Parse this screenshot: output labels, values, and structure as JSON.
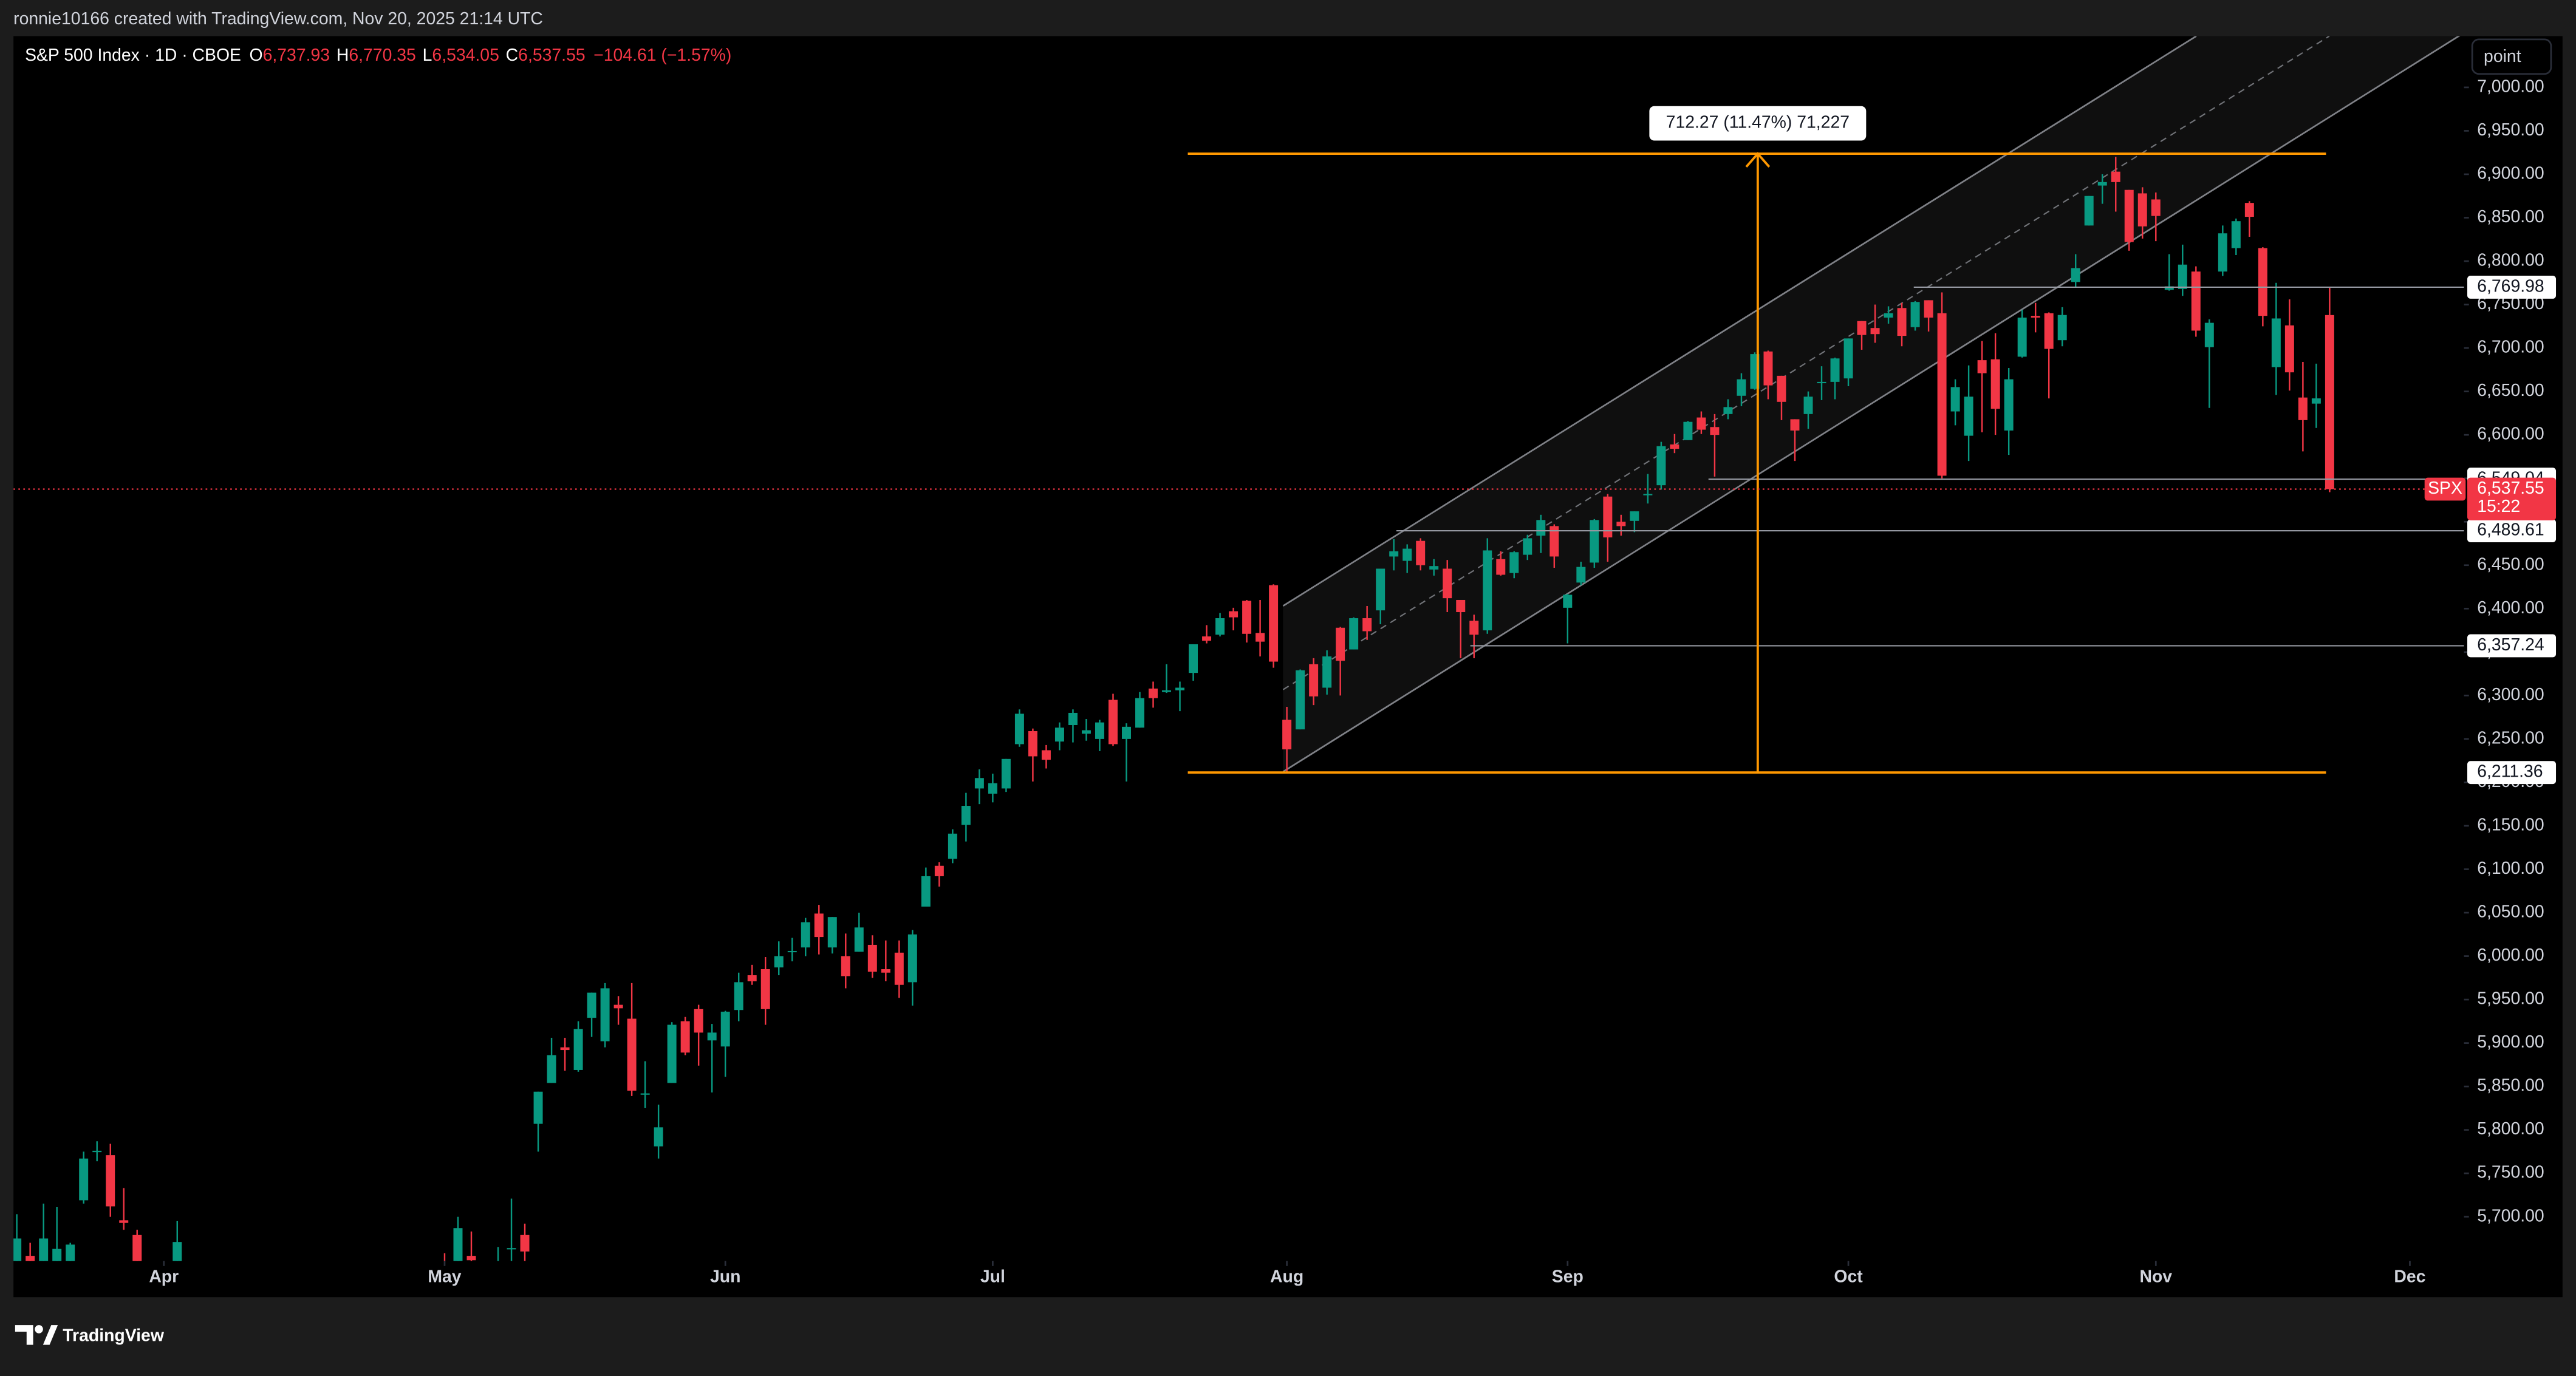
{
  "chart_data": {
    "type": "candlestick",
    "header": {
      "credit": "ronnie10166 created with TradingView.com, Nov 20, 2025 21:14 UTC"
    },
    "legend": {
      "symbol": "S&P 500 Index · 1D · CBOE",
      "ohlc": [
        {
          "key": "O",
          "label": "6,737.93"
        },
        {
          "key": "H",
          "label": "6,770.35"
        },
        {
          "key": "L",
          "label": "6,534.05"
        },
        {
          "key": "C",
          "label": "6,537.55"
        }
      ],
      "change": "−104.61 (−1.57%)"
    },
    "scale_button": "point",
    "brand": "TradingView",
    "up_color": "#089981",
    "down_color": "#f23645",
    "grid": false,
    "xlim": [
      -0.25,
      183.05
    ],
    "ylim": [
      5649,
      7059
    ],
    "xticks": [
      {
        "value": 11,
        "label": "Apr"
      },
      {
        "value": 32,
        "label": "May"
      },
      {
        "value": 53,
        "label": "Jun"
      },
      {
        "value": 73,
        "label": "Jul"
      },
      {
        "value": 95,
        "label": "Aug"
      },
      {
        "value": 116,
        "label": "Sep"
      },
      {
        "value": 137,
        "label": "Oct"
      },
      {
        "value": 160,
        "label": "Nov"
      },
      {
        "value": 179,
        "label": "Dec"
      }
    ],
    "yticks": [
      {
        "value": 5700,
        "label": "5,700.00"
      },
      {
        "value": 5750,
        "label": "5,750.00"
      },
      {
        "value": 5800,
        "label": "5,800.00"
      },
      {
        "value": 5850,
        "label": "5,850.00"
      },
      {
        "value": 5900,
        "label": "5,900.00"
      },
      {
        "value": 5950,
        "label": "5,950.00"
      },
      {
        "value": 6000,
        "label": "6,000.00"
      },
      {
        "value": 6050,
        "label": "6,050.00"
      },
      {
        "value": 6100,
        "label": "6,100.00"
      },
      {
        "value": 6150,
        "label": "6,150.00"
      },
      {
        "value": 6200,
        "label": "6,200.00"
      },
      {
        "value": 6250,
        "label": "6,250.00"
      },
      {
        "value": 6300,
        "label": "6,300.00"
      },
      {
        "value": 6350,
        "label": "6,350.00"
      },
      {
        "value": 6400,
        "label": "6,400.00"
      },
      {
        "value": 6450,
        "label": "6,450.00"
      },
      {
        "value": 6500,
        "label": "6,500.00"
      },
      {
        "value": 6550,
        "label": "6,550.00"
      },
      {
        "value": 6600,
        "label": "6,600.00"
      },
      {
        "value": 6650,
        "label": "6,650.00"
      },
      {
        "value": 6700,
        "label": "6,700.00"
      },
      {
        "value": 6750,
        "label": "6,750.00"
      },
      {
        "value": 6800,
        "label": "6,800.00"
      },
      {
        "value": 6850,
        "label": "6,850.00"
      },
      {
        "value": 6900,
        "label": "6,900.00"
      },
      {
        "value": 6950,
        "label": "6,950.00"
      },
      {
        "value": 7000,
        "label": "7,000.00"
      }
    ],
    "price_levels": [
      {
        "value": 6769.98,
        "label": "6,769.98"
      },
      {
        "value": 6549.04,
        "label": "6,549.04"
      },
      {
        "value": 6489.61,
        "label": "6,489.61"
      },
      {
        "value": 6357.24,
        "label": "6,357.24"
      },
      {
        "value": 6211.36,
        "label": "6,211.36"
      }
    ],
    "measure": {
      "label": "712.27 (11.47%) 71,227",
      "change": 712.27
    },
    "last_price": {
      "symbol": "SPX",
      "label": "6,537.55",
      "countdown": "15:22"
    },
    "ohlc": [
      [
        5635,
        5703,
        5632,
        5675
      ],
      [
        5655,
        5670,
        5597,
        5615
      ],
      [
        5632,
        5715,
        5622,
        5675
      ],
      [
        5646,
        5711,
        5633,
        5663
      ],
      [
        5630,
        5670,
        5603,
        5668
      ],
      [
        5719,
        5775,
        5715,
        5767
      ],
      [
        5775,
        5787,
        5764,
        5776
      ],
      [
        5771,
        5784,
        5700,
        5712
      ],
      [
        5696,
        5733,
        5685,
        5693
      ],
      [
        5679,
        5685,
        5572,
        5581
      ],
      null,
      null,
      [
        5580,
        5695,
        5571,
        5671
      ],
      null,
      null,
      null,
      null,
      null,
      null,
      null,
      null,
      null,
      null,
      null,
      null,
      null,
      null,
      null,
      null,
      null,
      null,
      null,
      [
        5626,
        5658,
        5597,
        5604
      ],
      [
        5645,
        5700,
        5631,
        5687
      ],
      [
        5655,
        5683,
        5637,
        5650
      ],
      null,
      [
        5617,
        5665,
        5585,
        5631
      ],
      [
        5663,
        5721,
        5640,
        5664
      ],
      [
        5679,
        5692,
        5645,
        5660
      ],
      [
        5807,
        5844,
        5775,
        5844
      ],
      [
        5854,
        5906,
        5854,
        5886
      ],
      [
        5895,
        5906,
        5868,
        5892
      ],
      [
        5869,
        5925,
        5867,
        5916
      ],
      [
        5929,
        5958,
        5907,
        5958
      ],
      [
        5902,
        5969,
        5895,
        5963
      ],
      [
        5944,
        5954,
        5921,
        5940
      ],
      [
        5928,
        5969,
        5839,
        5845
      ],
      [
        5841,
        5879,
        5825,
        5842
      ],
      [
        5781,
        5829,
        5767,
        5803
      ],
      [
        5854,
        5924,
        5854,
        5921
      ],
      [
        5925,
        5930,
        5886,
        5889
      ],
      [
        5939,
        5944,
        5874,
        5912
      ],
      [
        5903,
        5922,
        5843,
        5912
      ],
      [
        5896,
        5937,
        5861,
        5936
      ],
      [
        5938,
        5981,
        5925,
        5970
      ],
      [
        5978,
        5990,
        5967,
        5971
      ],
      [
        5985,
        5999,
        5921,
        5939
      ],
      [
        5987,
        6017,
        5978,
        6000
      ],
      [
        6005,
        6021,
        5994,
        6006
      ],
      [
        6010,
        6044,
        6000,
        6039
      ],
      [
        6049,
        6059,
        6002,
        6022
      ],
      [
        6010,
        6045,
        6003,
        6045
      ],
      [
        6000,
        6026,
        5963,
        5977
      ],
      [
        6005,
        6050,
        6005,
        6033
      ],
      [
        6013,
        6024,
        5975,
        5982
      ],
      [
        5985,
        6018,
        5971,
        5981
      ],
      [
        6004,
        6018,
        5952,
        5967
      ],
      [
        5970,
        6030,
        5943,
        6025
      ],
      [
        6057,
        6102,
        6057,
        6092
      ],
      [
        6104,
        6108,
        6080,
        6092
      ],
      [
        6112,
        6146,
        6107,
        6141
      ],
      [
        6151,
        6188,
        6132,
        6173
      ],
      [
        6193,
        6215,
        6175,
        6205
      ],
      [
        6187,
        6210,
        6177,
        6199
      ],
      [
        6193,
        6227,
        6189,
        6227
      ],
      [
        6244,
        6284,
        6241,
        6279
      ],
      [
        6259,
        6262,
        6201,
        6230
      ],
      [
        6237,
        6243,
        6216,
        6226
      ],
      [
        6247,
        6269,
        6237,
        6263
      ],
      [
        6266,
        6284,
        6246,
        6280
      ],
      [
        6256,
        6273,
        6248,
        6260
      ],
      [
        6250,
        6272,
        6236,
        6269
      ],
      [
        6295,
        6302,
        6242,
        6244
      ],
      [
        6250,
        6268,
        6201,
        6264
      ],
      [
        6263,
        6304,
        6263,
        6297
      ],
      [
        6308,
        6316,
        6286,
        6297
      ],
      [
        6304,
        6336,
        6303,
        6306
      ],
      [
        6306,
        6316,
        6282,
        6309
      ],
      [
        6326,
        6359,
        6317,
        6359
      ],
      [
        6368,
        6381,
        6360,
        6363
      ],
      [
        6370,
        6395,
        6368,
        6389
      ],
      [
        6397,
        6401,
        6375,
        6390
      ],
      [
        6409,
        6410,
        6361,
        6371
      ],
      [
        6372,
        6410,
        6345,
        6362
      ],
      [
        6427,
        6428,
        6332,
        6339
      ],
      [
        6272,
        6287,
        6212,
        6238
      ],
      [
        6261,
        6330,
        6261,
        6329
      ],
      [
        6336,
        6343,
        6289,
        6299
      ],
      [
        6309,
        6352,
        6301,
        6345
      ],
      [
        6378,
        6379,
        6300,
        6340
      ],
      [
        6353,
        6390,
        6353,
        6389
      ],
      [
        6389,
        6403,
        6364,
        6374
      ],
      [
        6398,
        6446,
        6382,
        6446
      ],
      [
        6460,
        6480,
        6444,
        6466
      ],
      [
        6455,
        6474,
        6441,
        6469
      ],
      [
        6478,
        6481,
        6444,
        6450
      ],
      [
        6445,
        6457,
        6438,
        6449
      ],
      [
        6446,
        6456,
        6396,
        6412
      ],
      [
        6410,
        6410,
        6343,
        6396
      ],
      [
        6386,
        6393,
        6343,
        6370
      ],
      [
        6375,
        6481,
        6371,
        6467
      ],
      [
        6457,
        6466,
        6438,
        6439
      ],
      [
        6441,
        6466,
        6435,
        6465
      ],
      [
        6462,
        6485,
        6456,
        6481
      ],
      [
        6484,
        6508,
        6464,
        6502
      ],
      [
        6495,
        6497,
        6447,
        6460
      ],
      [
        6401,
        6417,
        6360,
        6416
      ],
      [
        6430,
        6454,
        6427,
        6448
      ],
      [
        6453,
        6503,
        6447,
        6502
      ],
      [
        6529,
        6532,
        6454,
        6482
      ],
      [
        6500,
        6508,
        6484,
        6495
      ],
      [
        6501,
        6512,
        6488,
        6512
      ],
      [
        6531,
        6555,
        6521,
        6532
      ],
      [
        6542,
        6592,
        6537,
        6587
      ],
      [
        6589,
        6601,
        6579,
        6584
      ],
      [
        6594,
        6616,
        6594,
        6615
      ],
      [
        6620,
        6627,
        6601,
        6606
      ],
      [
        6609,
        6624,
        6552,
        6600
      ],
      [
        6624,
        6641,
        6618,
        6632
      ],
      [
        6645,
        6671,
        6633,
        6664
      ],
      [
        6653,
        6695,
        6652,
        6693
      ],
      [
        6696,
        6697,
        6641,
        6657
      ],
      [
        6668,
        6668,
        6617,
        6638
      ],
      [
        6618,
        6618,
        6570,
        6605
      ],
      [
        6624,
        6650,
        6607,
        6644
      ],
      [
        6661,
        6679,
        6640,
        6661
      ],
      [
        6661,
        6689,
        6641,
        6688
      ],
      [
        6665,
        6711,
        6656,
        6711
      ],
      [
        6731,
        6731,
        6698,
        6715
      ],
      [
        6723,
        6750,
        6706,
        6716
      ],
      [
        6735,
        6748,
        6728,
        6740
      ],
      [
        6746,
        6752,
        6702,
        6714
      ],
      [
        6724,
        6754,
        6720,
        6753
      ],
      [
        6755,
        6755,
        6719,
        6735
      ],
      [
        6740,
        6764,
        6550,
        6553
      ],
      [
        6627,
        6664,
        6611,
        6655
      ],
      [
        6599,
        6680,
        6570,
        6644
      ],
      [
        6686,
        6708,
        6603,
        6671
      ],
      [
        6687,
        6717,
        6600,
        6630
      ],
      [
        6605,
        6677,
        6577,
        6664
      ],
      [
        6690,
        6744,
        6689,
        6735
      ],
      [
        6737,
        6752,
        6718,
        6735
      ],
      [
        6740,
        6741,
        6642,
        6699
      ],
      [
        6709,
        6747,
        6702,
        6738
      ],
      [
        6776,
        6808,
        6770,
        6792
      ],
      [
        6841,
        6875,
        6841,
        6875
      ],
      [
        6887,
        6900,
        6866,
        6891
      ],
      [
        6903,
        6920,
        6857,
        6891
      ],
      [
        6882,
        6882,
        6812,
        6822
      ],
      [
        6878,
        6885,
        6826,
        6840
      ],
      [
        6871,
        6879,
        6823,
        6852
      ],
      [
        6767,
        6808,
        6766,
        6771
      ],
      [
        6768,
        6819,
        6760,
        6796
      ],
      [
        6788,
        6794,
        6713,
        6720
      ],
      [
        6701,
        6733,
        6631,
        6729
      ],
      [
        6788,
        6841,
        6783,
        6832
      ],
      [
        6815,
        6849,
        6807,
        6846
      ],
      [
        6867,
        6869,
        6828,
        6851
      ],
      [
        6815,
        6816,
        6725,
        6737
      ],
      [
        6678,
        6775,
        6646,
        6734
      ],
      [
        6726,
        6756,
        6651,
        6672
      ],
      [
        6643,
        6684,
        6581,
        6617
      ],
      [
        6636,
        6682,
        6608,
        6642
      ],
      [
        6737.93,
        6770.35,
        6534.05,
        6537.55
      ]
    ]
  }
}
